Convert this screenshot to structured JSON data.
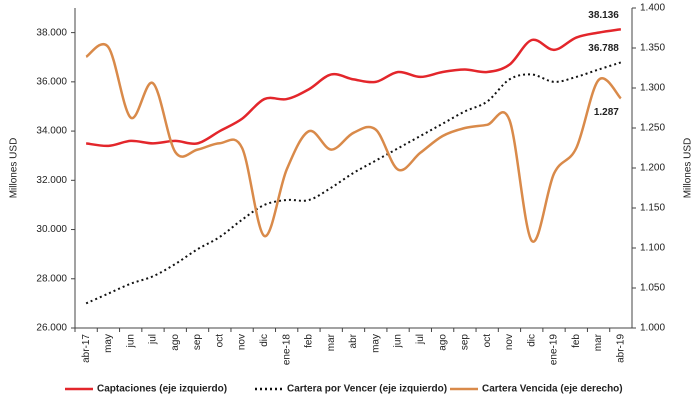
{
  "chart_data": {
    "type": "line",
    "categories": [
      "abr-17",
      "may",
      "jun",
      "jul",
      "ago",
      "sep",
      "oct",
      "nov",
      "dic",
      "ene-18",
      "feb",
      "mar",
      "abr",
      "may",
      "jun",
      "jul",
      "ago",
      "sep",
      "oct",
      "nov",
      "dic",
      "ene-19",
      "feb",
      "mar",
      "abr-19"
    ],
    "y_label": "Millones USD",
    "y2_label": "Millones USD",
    "ylim": [
      26000,
      39000
    ],
    "yticks": [
      {
        "value": 26000,
        "label": "26.000"
      },
      {
        "value": 28000,
        "label": "28.000"
      },
      {
        "value": 30000,
        "label": "30.000"
      },
      {
        "value": 32000,
        "label": "32.000"
      },
      {
        "value": 34000,
        "label": "34.000"
      },
      {
        "value": 36000,
        "label": "36.000"
      },
      {
        "value": 38000,
        "label": "38.000"
      }
    ],
    "y2lim": [
      1.0,
      1.4
    ],
    "y2ticks": [
      {
        "value": 1.0,
        "label": "1.000"
      },
      {
        "value": 1.05,
        "label": "1.050"
      },
      {
        "value": 1.1,
        "label": "1.100"
      },
      {
        "value": 1.15,
        "label": "1.150"
      },
      {
        "value": 1.2,
        "label": "1.200"
      },
      {
        "value": 1.25,
        "label": "1.250"
      },
      {
        "value": 1.3,
        "label": "1.300"
      },
      {
        "value": 1.35,
        "label": "1.350"
      },
      {
        "value": 1.4,
        "label": "1.400"
      }
    ],
    "series": [
      {
        "name": "Captaciones (eje izquierdo)",
        "color": "#e3262b",
        "dash": false,
        "axis": "y",
        "values": [
          33500,
          33400,
          33600,
          33500,
          33600,
          33500,
          34000,
          34500,
          35300,
          35300,
          35700,
          36300,
          36100,
          36000,
          36400,
          36200,
          36400,
          36500,
          36400,
          36700,
          37700,
          37300,
          37800,
          38000,
          38136
        ],
        "value_labels": [
          null,
          null,
          null,
          null,
          null,
          null,
          null,
          null,
          null,
          null,
          null,
          null,
          null,
          null,
          null,
          null,
          null,
          null,
          null,
          null,
          null,
          null,
          null,
          null,
          "38.136"
        ]
      },
      {
        "name": "Cartera por Vencer (eje izquierdo)",
        "color": "#111111",
        "dash": true,
        "axis": "y",
        "values": [
          27000,
          27400,
          27800,
          28100,
          28600,
          29200,
          29700,
          30400,
          31000,
          31200,
          31200,
          31700,
          32300,
          32800,
          33300,
          33800,
          34300,
          34800,
          35200,
          36100,
          36300,
          36000,
          36200,
          36500,
          36788
        ],
        "value_labels": [
          null,
          null,
          null,
          null,
          null,
          null,
          null,
          null,
          null,
          null,
          null,
          null,
          null,
          null,
          null,
          null,
          null,
          null,
          null,
          null,
          null,
          null,
          null,
          null,
          "36.788"
        ]
      },
      {
        "name": "Cartera Vencida (eje derecho)",
        "color": "#d98a4a",
        "dash": false,
        "axis": "y2",
        "values": [
          1.339,
          1.351,
          1.263,
          1.306,
          1.22,
          1.223,
          1.231,
          1.225,
          1.115,
          1.198,
          1.246,
          1.223,
          1.244,
          1.248,
          1.198,
          1.219,
          1.24,
          1.25,
          1.254,
          1.26,
          1.109,
          1.193,
          1.225,
          1.31,
          1.287
        ],
        "value_labels": [
          null,
          null,
          null,
          null,
          null,
          null,
          null,
          null,
          null,
          null,
          null,
          null,
          null,
          null,
          null,
          null,
          null,
          null,
          null,
          null,
          null,
          null,
          null,
          null,
          "1.287"
        ]
      }
    ]
  }
}
